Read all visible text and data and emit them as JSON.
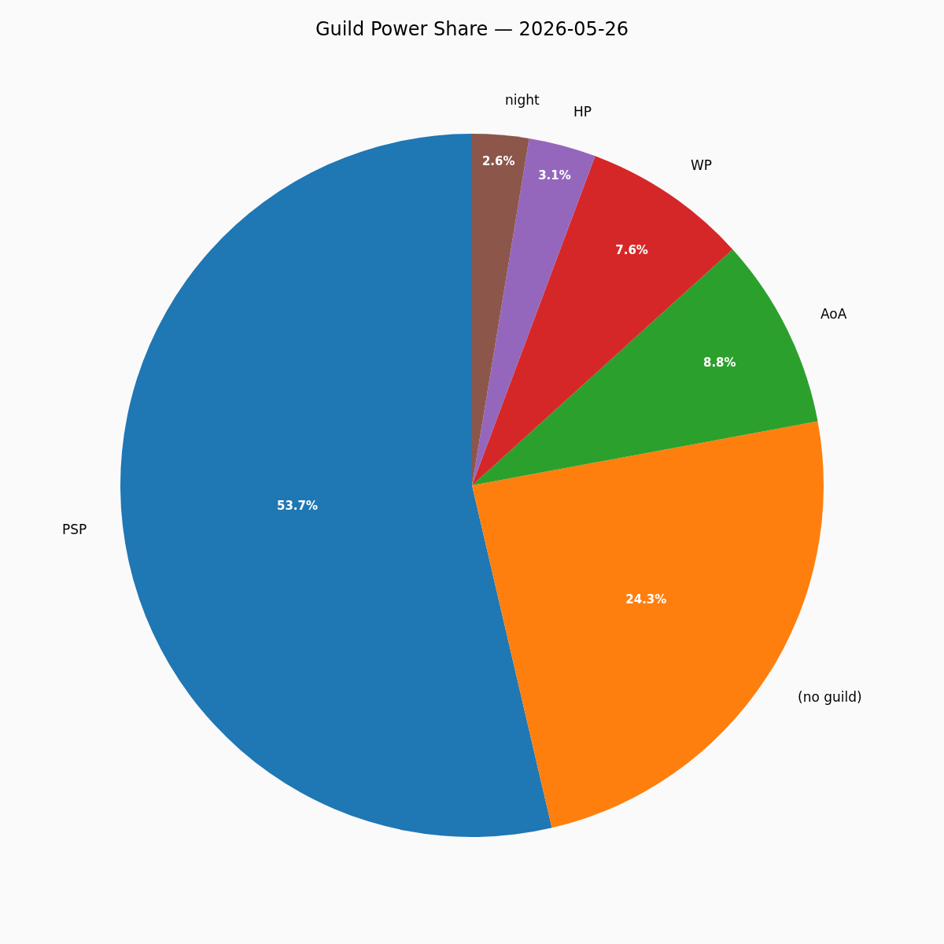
{
  "chart_data": {
    "type": "pie",
    "title": "Guild Power Share — 2026-05-26",
    "categories": [
      "PSP",
      "(no guild)",
      "AoA",
      "WP",
      "HP",
      "night"
    ],
    "values": [
      53.7,
      24.3,
      8.8,
      7.6,
      3.1,
      2.6
    ],
    "colors": [
      "#1f77b4",
      "#ff7f0e",
      "#2ca02c",
      "#d62728",
      "#9467bd",
      "#8c564b"
    ],
    "value_labels": [
      "53.7%",
      "24.3%",
      "8.8%",
      "7.6%",
      "3.1%",
      "2.6%"
    ]
  }
}
